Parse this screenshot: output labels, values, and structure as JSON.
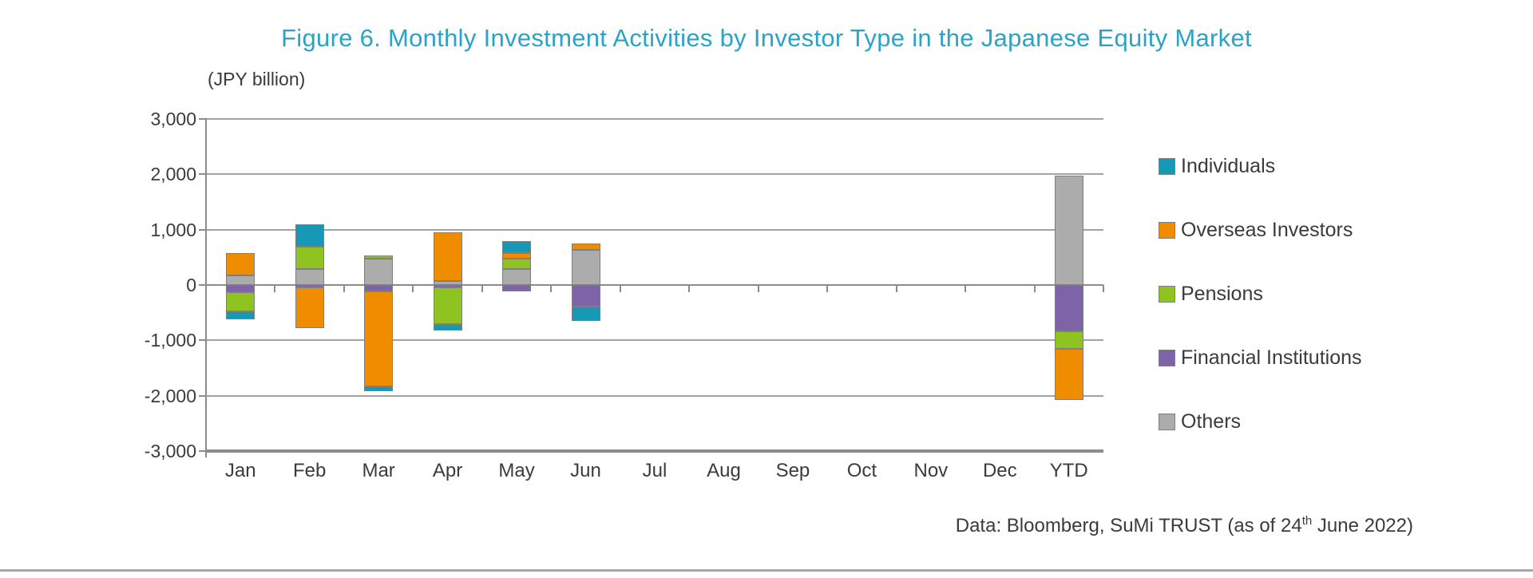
{
  "title": "Figure 6. Monthly Investment Activities by Investor Type in the Japanese Equity Market",
  "unit_label": "(JPY billion)",
  "footer": {
    "text_before_sup": "Data: Bloomberg, SuMi TRUST (as of 24",
    "superscript": "th",
    "text_after_sup": " June 2022)"
  },
  "colors": {
    "title": "#2ba2c8",
    "text": "#3b3b3b",
    "gridline": "#a3a3a3",
    "axis": "#8c8c8c",
    "bar_border": "#7f7f7f",
    "divider": "#a7a7a7"
  },
  "chart_data": {
    "type": "bar",
    "stacked": true,
    "title": "Figure 6. Monthly Investment Activities by Investor Type in the Japanese Equity Market",
    "xlabel": "",
    "ylabel": "JPY billion",
    "ylim": [
      -3000,
      3000
    ],
    "ytick_interval": 1000,
    "ytick_labels": [
      "3,000",
      "2,000",
      "1,000",
      "0",
      "-1,000",
      "-2,000",
      "-3,000"
    ],
    "categories": [
      "Jan",
      "Feb",
      "Mar",
      "Apr",
      "May",
      "Jun",
      "Jul",
      "Aug",
      "Sep",
      "Oct",
      "Nov",
      "Dec",
      "YTD"
    ],
    "series": [
      {
        "name": "Individuals",
        "color": "#1599b6",
        "values": [
          -145,
          410,
          -95,
          -125,
          215,
          -260,
          0,
          0,
          0,
          0,
          0,
          0,
          0
        ]
      },
      {
        "name": "Overseas Investors",
        "color": "#f08c00",
        "values": [
          400,
          -730,
          -1710,
          880,
          95,
          110,
          0,
          0,
          0,
          0,
          0,
          0,
          -910
        ]
      },
      {
        "name": "Pensions",
        "color": "#8ec321",
        "values": [
          -350,
          400,
          55,
          -650,
          195,
          0,
          0,
          0,
          0,
          0,
          0,
          0,
          -325
        ]
      },
      {
        "name": "Financial Institutions",
        "color": "#7d64a8",
        "values": [
          -130,
          -50,
          -120,
          -50,
          -120,
          -385,
          0,
          0,
          0,
          0,
          0,
          0,
          -835
        ]
      },
      {
        "name": "Others",
        "color": "#acacac",
        "values": [
          170,
          290,
          480,
          70,
          285,
          640,
          0,
          0,
          0,
          0,
          0,
          0,
          1975
        ]
      }
    ],
    "stack_order_from_axis": [
      "Others",
      "Financial Institutions",
      "Pensions",
      "Overseas Investors",
      "Individuals"
    ],
    "legend_position": "right",
    "grid": true
  }
}
